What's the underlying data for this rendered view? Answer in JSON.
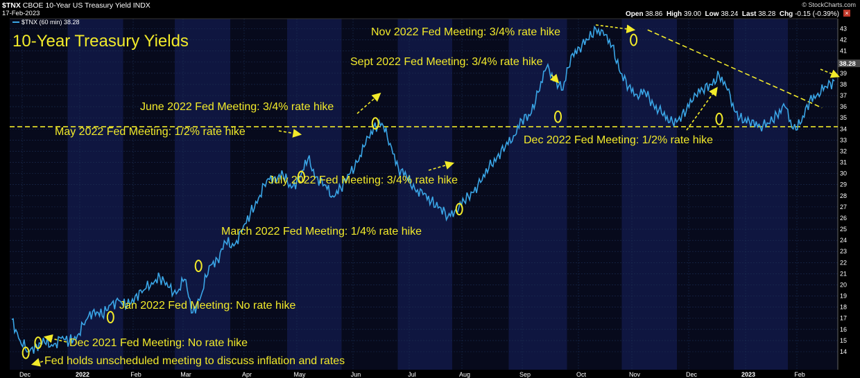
{
  "header": {
    "symbol": "$TNX",
    "description": "CBOE 10-Year US Treasury Yield INDX",
    "date": "17-Feb-2023",
    "legend_series": "$TNX (60 min) 38.28",
    "watermark": "© StockCharts.com",
    "ohlc": {
      "open_label": "Open",
      "open": "38.86",
      "high_label": "High",
      "high": "39.00",
      "low_label": "Low",
      "low": "38.24",
      "last_label": "Last",
      "last": "38.28",
      "chg_label": "Chg",
      "chg": "-0.15 (-0.39%)"
    },
    "close_icon": "close-icon"
  },
  "chart_data": {
    "type": "line",
    "title": "10-Year Treasury Yields",
    "ylim": [
      13.2,
      43.5
    ],
    "yticks": [
      14,
      15,
      16,
      17,
      18,
      19,
      20,
      21,
      22,
      23,
      24,
      25,
      26,
      27,
      28,
      29,
      30,
      31,
      32,
      33,
      34,
      35,
      36,
      37,
      38,
      39,
      40,
      41,
      42,
      43
    ],
    "last_value_label": "38.28",
    "xlabels": [
      "Dec",
      "2022",
      "Feb",
      "Mar",
      "Apr",
      "May",
      "Jun",
      "Jul",
      "Aug",
      "Sep",
      "Oct",
      "Nov",
      "Dec",
      "2023",
      "Feb"
    ],
    "grid": true,
    "horizontal_line": 34.2,
    "trendline": {
      "from": {
        "t": 0.773,
        "y": 42.9
      },
      "to": {
        "t": 0.985,
        "y": 35.9
      }
    },
    "series": [
      {
        "color": "#3aa5e6",
        "t": [
          0,
          0.01,
          0.02,
          0.03,
          0.04,
          0.05,
          0.06,
          0.07,
          0.08,
          0.09,
          0.1,
          0.11,
          0.12,
          0.13,
          0.14,
          0.15,
          0.16,
          0.17,
          0.18,
          0.19,
          0.2,
          0.21,
          0.22,
          0.23,
          0.24,
          0.25,
          0.26,
          0.27,
          0.28,
          0.29,
          0.3,
          0.31,
          0.32,
          0.33,
          0.34,
          0.35,
          0.36,
          0.37,
          0.38,
          0.39,
          0.4,
          0.41,
          0.42,
          0.43,
          0.44,
          0.45,
          0.46,
          0.47,
          0.48,
          0.49,
          0.5,
          0.51,
          0.52,
          0.53,
          0.54,
          0.55,
          0.56,
          0.57,
          0.58,
          0.59,
          0.6,
          0.61,
          0.62,
          0.63,
          0.64,
          0.65,
          0.66,
          0.67,
          0.68,
          0.69,
          0.7,
          0.71,
          0.72,
          0.73,
          0.74,
          0.75,
          0.76,
          0.77,
          0.78,
          0.79,
          0.8,
          0.81,
          0.82,
          0.83,
          0.84,
          0.85,
          0.86,
          0.87,
          0.88,
          0.89,
          0.9,
          0.91,
          0.92,
          0.93,
          0.94,
          0.95,
          0.96,
          0.97,
          0.98,
          0.99,
          1.0
        ],
        "values": [
          16.9,
          15.0,
          14.0,
          14.6,
          14.8,
          14.5,
          15.2,
          14.9,
          15.5,
          16.8,
          17.8,
          17.2,
          18.2,
          18.6,
          18.0,
          19.0,
          19.5,
          20.2,
          20.7,
          19.8,
          19.2,
          20.5,
          17.5,
          19.0,
          21.7,
          22.3,
          23.8,
          23.5,
          24.8,
          26.4,
          27.8,
          29.4,
          29.7,
          29.8,
          28.7,
          29.6,
          31.3,
          29.7,
          29.0,
          28.0,
          28.7,
          29.9,
          31.0,
          32.6,
          34.2,
          34.5,
          32.7,
          30.5,
          29.7,
          28.6,
          28.1,
          27.5,
          27.0,
          26.1,
          26.8,
          27.5,
          28.3,
          29.2,
          30.5,
          31.5,
          32.4,
          33.4,
          34.8,
          35.2,
          37.3,
          39.5,
          38.5,
          37.5,
          40.6,
          41.3,
          42.0,
          43.0,
          42.4,
          41.5,
          39.0,
          37.8,
          37.1,
          37.3,
          36.2,
          35.4,
          34.6,
          34.8,
          35.6,
          37.2,
          37.5,
          38.0,
          38.8,
          37.5,
          35.5,
          34.6,
          34.8,
          34.2,
          34.5,
          35.3,
          36.0,
          34.0,
          34.6,
          36.6,
          37.2,
          37.8,
          38.3
        ]
      }
    ],
    "markers": [
      {
        "t": 0.017,
        "y": 13.9
      },
      {
        "t": 0.032,
        "y": 14.8
      },
      {
        "t": 0.12,
        "y": 17.1
      },
      {
        "t": 0.227,
        "y": 21.7
      },
      {
        "t": 0.352,
        "y": 29.7
      },
      {
        "t": 0.442,
        "y": 34.5
      },
      {
        "t": 0.544,
        "y": 26.8
      },
      {
        "t": 0.664,
        "y": 35.1
      },
      {
        "t": 0.756,
        "y": 42.0
      },
      {
        "t": 0.86,
        "y": 34.9
      }
    ],
    "annotations": [
      {
        "text": "Fed holds unscheduled meeting to discuss inflation and rates"
      },
      {
        "text": "Dec 2021 Fed Meeting: No rate hike"
      },
      {
        "text": "Jan 2022 Fed Meeting: No rate hike"
      },
      {
        "text": "March 2022 Fed Meeting: 1/4% rate hike"
      },
      {
        "text": "May 2022 Fed Meeting: 1/2% rate hike"
      },
      {
        "text": "June 2022 Fed Meeting: 3/4% rate hike"
      },
      {
        "text": "July 2022 Fed Meeting: 3/4% rate hike"
      },
      {
        "text": "Sept 2022 Fed Meeting: 3/4% rate hike"
      },
      {
        "text": "Nov 2022 Fed Meeting: 3/4% rate hike"
      },
      {
        "text": "Dec 2022 Fed Meeting: 1/2% rate hike"
      }
    ],
    "colors": {
      "line": "#3aa5e6",
      "annotation": "#f2ea2a",
      "background": "#000000",
      "panel": "#070a1c",
      "grid": "#1c2f52"
    }
  }
}
